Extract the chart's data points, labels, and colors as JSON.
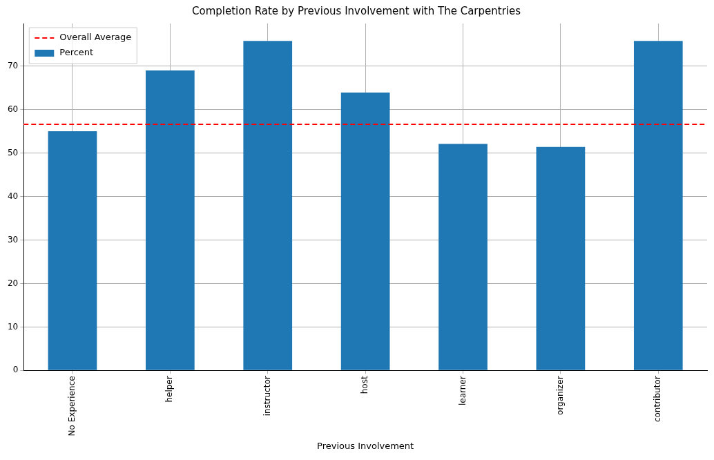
{
  "chart_data": {
    "type": "bar",
    "title": "Completion Rate by Previous Involvement with The Carpentries",
    "xlabel": "Previous Involvement",
    "categories": [
      "No Experience",
      "helper",
      "instructor",
      "host",
      "learner",
      "organizer",
      "contributor"
    ],
    "series": [
      {
        "name": "Percent",
        "color": "#1f77b4",
        "values": [
          55,
          69,
          75.8,
          63.9,
          52.1,
          51.4,
          75.8
        ]
      }
    ],
    "ylim": [
      0,
      79.8
    ],
    "yticks": [
      0,
      10,
      20,
      30,
      40,
      50,
      60,
      70
    ],
    "grid": true,
    "legend": "top left",
    "ref_lines": [
      {
        "axis": "y",
        "value": 56.6,
        "label": "Overall Average",
        "color": "#ff0000",
        "line_style": "dashed"
      }
    ]
  }
}
